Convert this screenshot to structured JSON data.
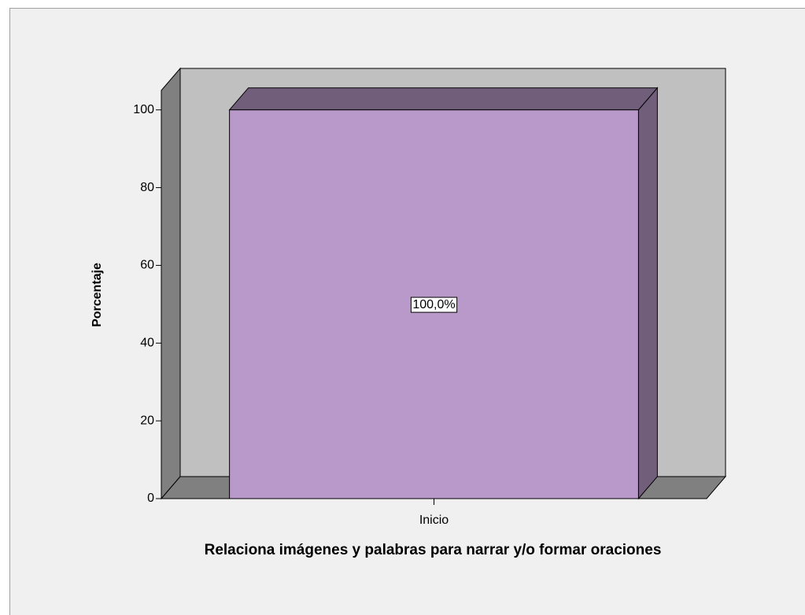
{
  "chart_data": {
    "type": "bar",
    "categories": [
      "Inicio"
    ],
    "values": [
      100
    ],
    "value_labels": [
      "100,0%"
    ],
    "color": "#b899c9",
    "ylim": [
      0,
      105
    ],
    "yticks": [
      0,
      20,
      40,
      60,
      80,
      100
    ],
    "ylabel": "Porcentaje",
    "xlabel": "Relaciona imágenes y palabras para narrar y/o formar oraciones",
    "grid": false
  }
}
